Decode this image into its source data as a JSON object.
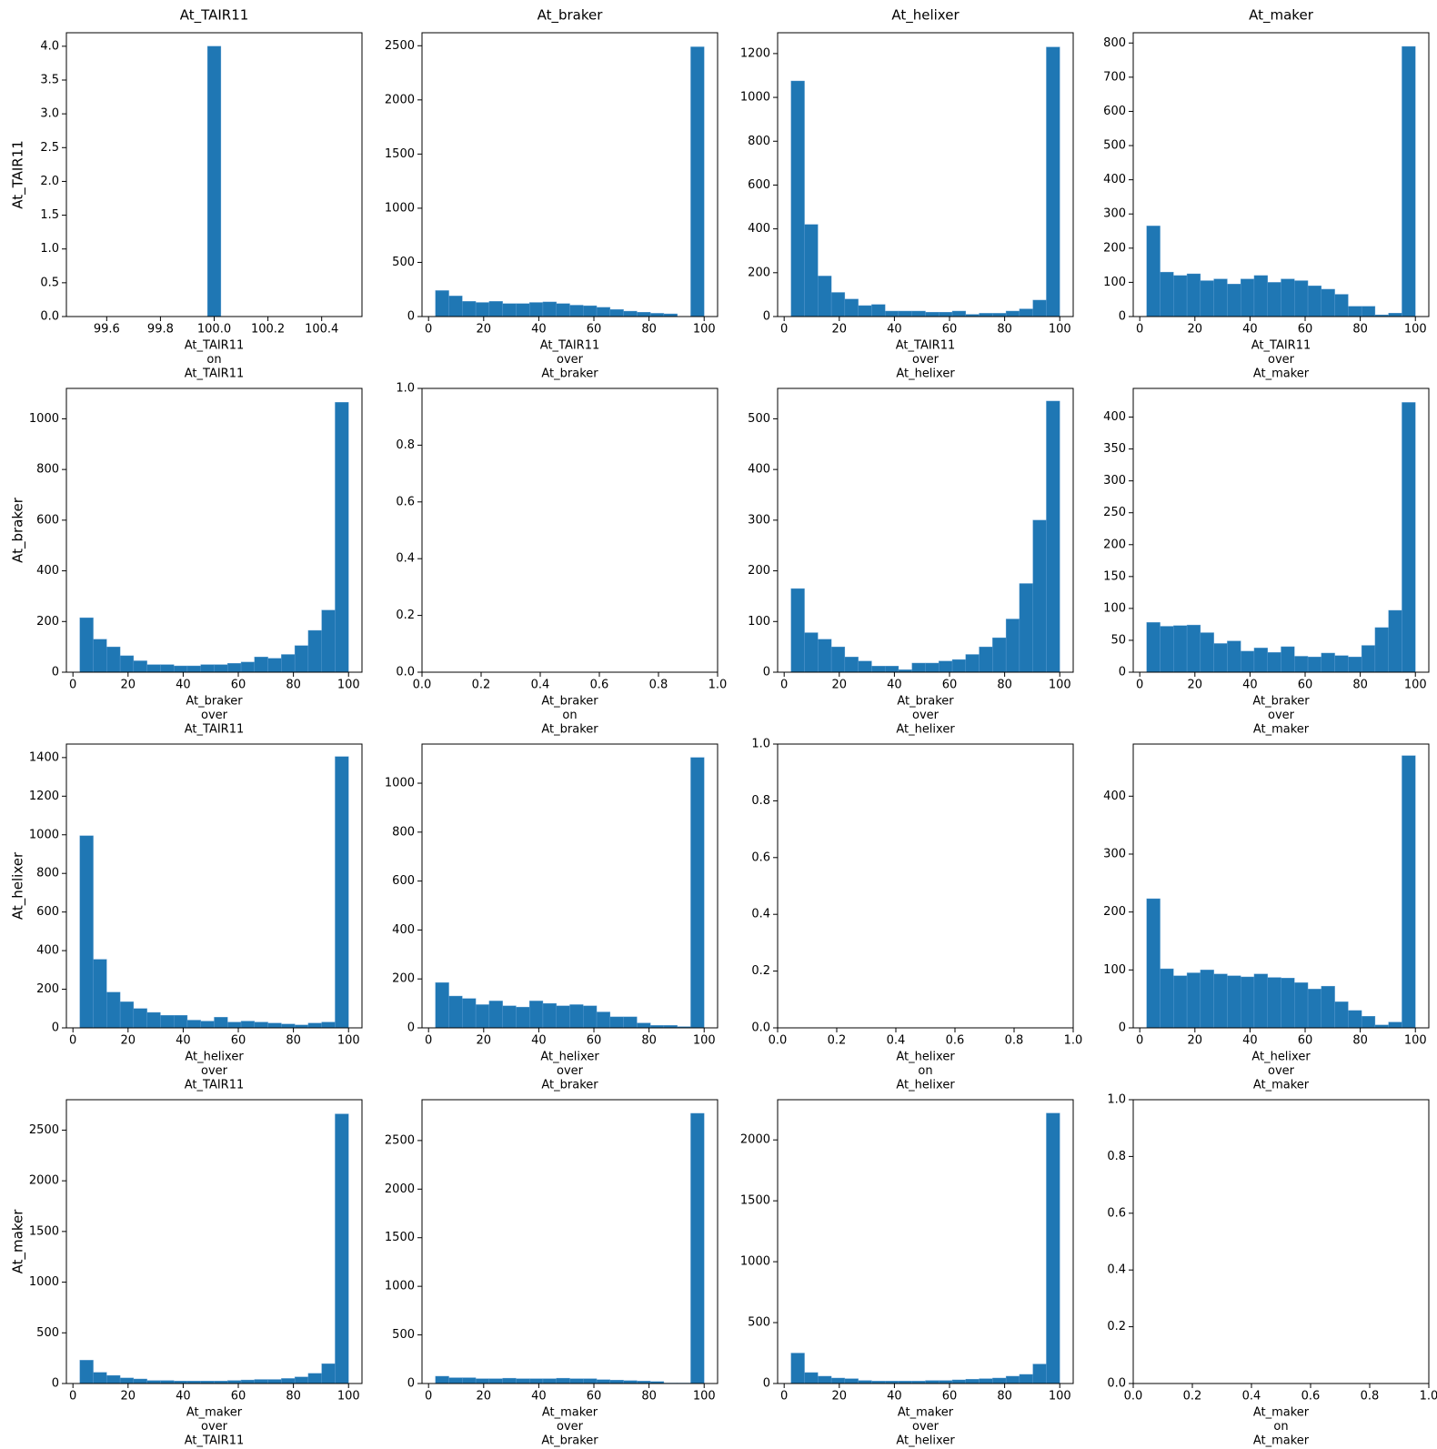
{
  "chart_data": [
    {
      "type": "histogram",
      "title": "At_TAIR11",
      "ylabel": "At_TAIR11",
      "xlabel": [
        "At_TAIR11",
        "on",
        "At_TAIR11"
      ],
      "color": "#1f77b4",
      "bins": [
        99.975,
        100.025
      ],
      "values": [
        4
      ],
      "xlim": [
        99.45,
        100.55
      ],
      "ylim": [
        0,
        4.2
      ],
      "xticks": [
        99.6,
        99.8,
        {
          "value": 100,
          "label": "100.0"
        },
        100.2,
        100.4
      ],
      "yticks": [
        {
          "value": 0,
          "label": "0.0"
        },
        0.5,
        {
          "value": 1,
          "label": "1.0"
        },
        1.5,
        {
          "value": 2,
          "label": "2.0"
        },
        2.5,
        {
          "value": 3,
          "label": "3.0"
        },
        3.5,
        {
          "value": 4,
          "label": "4.0"
        }
      ]
    },
    {
      "type": "histogram",
      "title": "At_braker",
      "xlabel": [
        "At_TAIR11",
        "over",
        "At_braker"
      ],
      "color": "#1f77b4",
      "bins": [
        2.5,
        7.375,
        12.25,
        17.125,
        22,
        26.875,
        31.75,
        36.625,
        41.5,
        46.375,
        51.25,
        56.125,
        61,
        65.875,
        70.75,
        75.625,
        80.5,
        85.375,
        90.25,
        95.125,
        100
      ],
      "values": [
        240,
        190,
        140,
        130,
        140,
        120,
        120,
        130,
        135,
        120,
        105,
        100,
        85,
        65,
        50,
        40,
        30,
        25,
        0,
        2490
      ],
      "xlim": [
        -2.375,
        104.875
      ],
      "ylim": [
        0,
        2620
      ],
      "xticks": [
        0,
        20,
        40,
        60,
        80,
        100
      ],
      "yticks": [
        0,
        500,
        1000,
        1500,
        2000,
        2500
      ]
    },
    {
      "type": "histogram",
      "title": "At_helixer",
      "xlabel": [
        "At_TAIR11",
        "over",
        "At_helixer"
      ],
      "color": "#1f77b4",
      "bins": [
        2.5,
        7.375,
        12.25,
        17.125,
        22,
        26.875,
        31.75,
        36.625,
        41.5,
        46.375,
        51.25,
        56.125,
        61,
        65.875,
        70.75,
        75.625,
        80.5,
        85.375,
        90.25,
        95.125,
        100
      ],
      "values": [
        1075,
        420,
        185,
        110,
        80,
        50,
        55,
        25,
        25,
        25,
        20,
        20,
        25,
        10,
        15,
        15,
        25,
        35,
        75,
        1230
      ],
      "xlim": [
        -2.375,
        104.875
      ],
      "ylim": [
        0,
        1295
      ],
      "xticks": [
        0,
        20,
        40,
        60,
        80,
        100
      ],
      "yticks": [
        0,
        200,
        400,
        600,
        800,
        1000,
        1200
      ]
    },
    {
      "type": "histogram",
      "title": "At_maker",
      "xlabel": [
        "At_TAIR11",
        "over",
        "At_maker"
      ],
      "color": "#1f77b4",
      "bins": [
        2.5,
        7.375,
        12.25,
        17.125,
        22,
        26.875,
        31.75,
        36.625,
        41.5,
        46.375,
        51.25,
        56.125,
        61,
        65.875,
        70.75,
        75.625,
        80.5,
        85.375,
        90.25,
        95.125,
        100
      ],
      "values": [
        265,
        130,
        120,
        125,
        105,
        110,
        95,
        110,
        120,
        100,
        110,
        105,
        90,
        80,
        65,
        30,
        30,
        5,
        10,
        790
      ],
      "xlim": [
        -2.375,
        104.875
      ],
      "ylim": [
        0,
        830
      ],
      "xticks": [
        0,
        20,
        40,
        60,
        80,
        100
      ],
      "yticks": [
        0,
        100,
        200,
        300,
        400,
        500,
        600,
        700,
        800
      ]
    },
    {
      "type": "histogram",
      "ylabel": "At_braker",
      "xlabel": [
        "At_braker",
        "over",
        "At_TAIR11"
      ],
      "color": "#1f77b4",
      "bins": [
        2.5,
        7.375,
        12.25,
        17.125,
        22,
        26.875,
        31.75,
        36.625,
        41.5,
        46.375,
        51.25,
        56.125,
        61,
        65.875,
        70.75,
        75.625,
        80.5,
        85.375,
        90.25,
        95.125,
        100
      ],
      "values": [
        215,
        130,
        100,
        65,
        45,
        30,
        30,
        25,
        25,
        30,
        30,
        35,
        40,
        60,
        55,
        70,
        105,
        165,
        245,
        1065
      ],
      "xlim": [
        -2.375,
        104.875
      ],
      "ylim": [
        0,
        1120
      ],
      "xticks": [
        0,
        20,
        40,
        60,
        80,
        100
      ],
      "yticks": [
        0,
        200,
        400,
        600,
        800,
        1000
      ]
    },
    {
      "type": "histogram",
      "xlabel": [
        "At_braker",
        "on",
        "At_braker"
      ],
      "xlim": [
        0,
        1
      ],
      "ylim": [
        0,
        1
      ],
      "xticks": [
        {
          "value": 0,
          "label": "0.0"
        },
        0.2,
        0.4,
        0.6,
        0.8,
        {
          "value": 1,
          "label": "1.0"
        }
      ],
      "yticks": [
        {
          "value": 0,
          "label": "0.0"
        },
        0.2,
        0.4,
        0.6,
        0.8,
        {
          "value": 1,
          "label": "1.0"
        }
      ]
    },
    {
      "type": "histogram",
      "xlabel": [
        "At_braker",
        "over",
        "At_helixer"
      ],
      "color": "#1f77b4",
      "bins": [
        2.5,
        7.375,
        12.25,
        17.125,
        22,
        26.875,
        31.75,
        36.625,
        41.5,
        46.375,
        51.25,
        56.125,
        61,
        65.875,
        70.75,
        75.625,
        80.5,
        85.375,
        90.25,
        95.125,
        100
      ],
      "values": [
        165,
        78,
        65,
        50,
        30,
        22,
        12,
        12,
        5,
        18,
        18,
        22,
        25,
        35,
        50,
        68,
        105,
        175,
        300,
        535
      ],
      "xlim": [
        -2.375,
        104.875
      ],
      "ylim": [
        0,
        560
      ],
      "xticks": [
        0,
        20,
        40,
        60,
        80,
        100
      ],
      "yticks": [
        0,
        100,
        200,
        300,
        400,
        500
      ]
    },
    {
      "type": "histogram",
      "xlabel": [
        "At_braker",
        "over",
        "At_maker"
      ],
      "color": "#1f77b4",
      "bins": [
        2.5,
        7.375,
        12.25,
        17.125,
        22,
        26.875,
        31.75,
        36.625,
        41.5,
        46.375,
        51.25,
        56.125,
        61,
        65.875,
        70.75,
        75.625,
        80.5,
        85.375,
        90.25,
        95.125,
        100
      ],
      "values": [
        78,
        72,
        73,
        74,
        62,
        45,
        49,
        33,
        38,
        31,
        40,
        25,
        24,
        30,
        26,
        24,
        42,
        70,
        97,
        423
      ],
      "xlim": [
        -2.375,
        104.875
      ],
      "ylim": [
        0,
        445
      ],
      "xticks": [
        0,
        20,
        40,
        60,
        80,
        100
      ],
      "yticks": [
        0,
        50,
        100,
        150,
        200,
        250,
        300,
        350,
        400
      ]
    },
    {
      "type": "histogram",
      "ylabel": "At_helixer",
      "xlabel": [
        "At_helixer",
        "over",
        "At_TAIR11"
      ],
      "color": "#1f77b4",
      "bins": [
        2.5,
        7.375,
        12.25,
        17.125,
        22,
        26.875,
        31.75,
        36.625,
        41.5,
        46.375,
        51.25,
        56.125,
        61,
        65.875,
        70.75,
        75.625,
        80.5,
        85.375,
        90.25,
        95.125,
        100
      ],
      "values": [
        995,
        355,
        185,
        135,
        100,
        80,
        65,
        65,
        40,
        35,
        55,
        30,
        35,
        30,
        25,
        20,
        15,
        25,
        30,
        1405
      ],
      "xlim": [
        -2.375,
        104.875
      ],
      "ylim": [
        0,
        1470
      ],
      "xticks": [
        0,
        20,
        40,
        60,
        80,
        100
      ],
      "yticks": [
        0,
        200,
        400,
        600,
        800,
        1000,
        1200,
        1400
      ]
    },
    {
      "type": "histogram",
      "xlabel": [
        "At_helixer",
        "over",
        "At_braker"
      ],
      "color": "#1f77b4",
      "bins": [
        2.5,
        7.375,
        12.25,
        17.125,
        22,
        26.875,
        31.75,
        36.625,
        41.5,
        46.375,
        51.25,
        56.125,
        61,
        65.875,
        70.75,
        75.625,
        80.5,
        85.375,
        90.25,
        95.125,
        100
      ],
      "values": [
        185,
        130,
        120,
        95,
        110,
        90,
        85,
        110,
        100,
        90,
        95,
        90,
        65,
        45,
        45,
        20,
        10,
        10,
        5,
        1105
      ],
      "xlim": [
        -2.375,
        104.875
      ],
      "ylim": [
        0,
        1160
      ],
      "xticks": [
        0,
        20,
        40,
        60,
        80,
        100
      ],
      "yticks": [
        0,
        200,
        400,
        600,
        800,
        1000
      ]
    },
    {
      "type": "histogram",
      "xlabel": [
        "At_helixer",
        "on",
        "At_helixer"
      ],
      "xlim": [
        0,
        1
      ],
      "ylim": [
        0,
        1
      ],
      "xticks": [
        {
          "value": 0,
          "label": "0.0"
        },
        0.2,
        0.4,
        0.6,
        0.8,
        {
          "value": 1,
          "label": "1.0"
        }
      ],
      "yticks": [
        {
          "value": 0,
          "label": "0.0"
        },
        0.2,
        0.4,
        0.6,
        0.8,
        {
          "value": 1,
          "label": "1.0"
        }
      ]
    },
    {
      "type": "histogram",
      "xlabel": [
        "At_helixer",
        "over",
        "At_maker"
      ],
      "color": "#1f77b4",
      "bins": [
        2.5,
        7.375,
        12.25,
        17.125,
        22,
        26.875,
        31.75,
        36.625,
        41.5,
        46.375,
        51.25,
        56.125,
        61,
        65.875,
        70.75,
        75.625,
        80.5,
        85.375,
        90.25,
        95.125,
        100
      ],
      "values": [
        223,
        102,
        90,
        95,
        100,
        93,
        90,
        88,
        93,
        87,
        86,
        78,
        67,
        72,
        45,
        30,
        20,
        5,
        10,
        470
      ],
      "xlim": [
        -2.375,
        104.875
      ],
      "ylim": [
        0,
        490
      ],
      "xticks": [
        0,
        20,
        40,
        60,
        80,
        100
      ],
      "yticks": [
        0,
        100,
        200,
        300,
        400
      ]
    },
    {
      "type": "histogram",
      "ylabel": "At_maker",
      "xlabel": [
        "At_maker",
        "over",
        "At_TAIR11"
      ],
      "color": "#1f77b4",
      "bins": [
        2.5,
        7.375,
        12.25,
        17.125,
        22,
        26.875,
        31.75,
        36.625,
        41.5,
        46.375,
        51.25,
        56.125,
        61,
        65.875,
        70.75,
        75.625,
        80.5,
        85.375,
        90.25,
        95.125,
        100
      ],
      "values": [
        230,
        110,
        80,
        55,
        45,
        30,
        30,
        25,
        25,
        25,
        25,
        30,
        35,
        40,
        40,
        50,
        65,
        100,
        195,
        2660
      ],
      "xlim": [
        -2.375,
        104.875
      ],
      "ylim": [
        0,
        2800
      ],
      "xticks": [
        0,
        20,
        40,
        60,
        80,
        100
      ],
      "yticks": [
        0,
        500,
        1000,
        1500,
        2000,
        2500
      ]
    },
    {
      "type": "histogram",
      "xlabel": [
        "At_maker",
        "over",
        "At_braker"
      ],
      "color": "#1f77b4",
      "bins": [
        2.5,
        7.375,
        12.25,
        17.125,
        22,
        26.875,
        31.75,
        36.625,
        41.5,
        46.375,
        51.25,
        56.125,
        61,
        65.875,
        70.75,
        75.625,
        80.5,
        85.375,
        90.25,
        95.125,
        100
      ],
      "values": [
        75,
        60,
        60,
        50,
        50,
        55,
        50,
        50,
        50,
        55,
        50,
        50,
        40,
        35,
        30,
        25,
        20,
        5,
        5,
        2780
      ],
      "xlim": [
        -2.375,
        104.875
      ],
      "ylim": [
        0,
        2920
      ],
      "xticks": [
        0,
        20,
        40,
        60,
        80,
        100
      ],
      "yticks": [
        0,
        500,
        1000,
        1500,
        2000,
        2500
      ]
    },
    {
      "type": "histogram",
      "xlabel": [
        "At_maker",
        "over",
        "At_helixer"
      ],
      "color": "#1f77b4",
      "bins": [
        2.5,
        7.375,
        12.25,
        17.125,
        22,
        26.875,
        31.75,
        36.625,
        41.5,
        46.375,
        51.25,
        56.125,
        61,
        65.875,
        70.75,
        75.625,
        80.5,
        85.375,
        90.25,
        95.125,
        100
      ],
      "values": [
        250,
        90,
        60,
        45,
        40,
        25,
        20,
        20,
        20,
        20,
        25,
        25,
        30,
        35,
        40,
        45,
        60,
        75,
        160,
        2220
      ],
      "xlim": [
        -2.375,
        104.875
      ],
      "ylim": [
        0,
        2330
      ],
      "xticks": [
        0,
        20,
        40,
        60,
        80,
        100
      ],
      "yticks": [
        0,
        500,
        1000,
        1500,
        2000
      ]
    },
    {
      "type": "histogram",
      "xlabel": [
        "At_maker",
        "on",
        "At_maker"
      ],
      "xlim": [
        0,
        1
      ],
      "ylim": [
        0,
        1
      ],
      "xticks": [
        {
          "value": 0,
          "label": "0.0"
        },
        0.2,
        0.4,
        0.6,
        0.8,
        {
          "value": 1,
          "label": "1.0"
        }
      ],
      "yticks": [
        {
          "value": 0,
          "label": "0.0"
        },
        0.2,
        0.4,
        0.6,
        0.8,
        {
          "value": 1,
          "label": "1.0"
        }
      ]
    }
  ]
}
